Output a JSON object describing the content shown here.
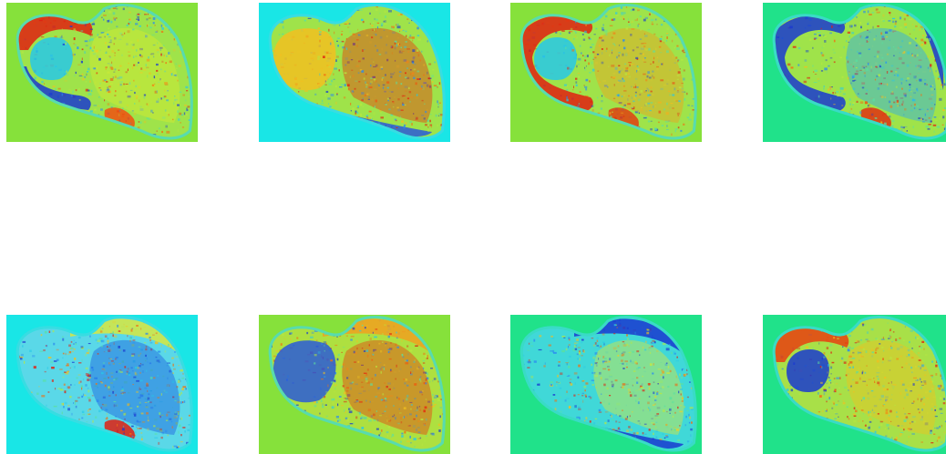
{
  "panels": [
    {
      "id": "p1",
      "background": "#86e13b",
      "body_base": "#9fe34a",
      "colormap": "jet",
      "blobs": [
        {
          "c": "#e02010",
          "shape": "arc-left-top"
        },
        {
          "c": "#1a3ad0",
          "shape": "arc-left-bottom"
        },
        {
          "c": "#27c8e8",
          "shape": "ring-head"
        },
        {
          "c": "#d6e830",
          "shape": "shaft-texture"
        },
        {
          "c": "#f05010",
          "shape": "bottom-hotspot"
        }
      ]
    },
    {
      "id": "p2",
      "background": "#19e6e6",
      "body_base": "#9fe34a",
      "colormap": "jet",
      "blobs": [
        {
          "c": "#f2c020",
          "shape": "head-fill"
        },
        {
          "c": "#e83a10",
          "shape": "shaft-texture"
        },
        {
          "c": "#2a5ad8",
          "shape": "bottom-edge"
        }
      ]
    },
    {
      "id": "p3",
      "background": "#86e13b",
      "body_base": "#9fe34a",
      "colormap": "jet",
      "blobs": [
        {
          "c": "#e02010",
          "shape": "arc-left-full"
        },
        {
          "c": "#27c8e8",
          "shape": "ring-head"
        },
        {
          "c": "#f0a020",
          "shape": "shaft-texture"
        },
        {
          "c": "#e04010",
          "shape": "bottom-hotspot"
        }
      ]
    },
    {
      "id": "p4",
      "background": "#20e28a",
      "body_base": "#9fe34a",
      "colormap": "jet",
      "blobs": [
        {
          "c": "#1a3ad0",
          "shape": "arc-left-full"
        },
        {
          "c": "#2da8f0",
          "shape": "shaft-texture"
        },
        {
          "c": "#e03010",
          "shape": "bottom-hotspot"
        },
        {
          "c": "#1a3ad0",
          "shape": "right-edge"
        }
      ]
    },
    {
      "id": "p5",
      "background": "#19e6e6",
      "body_base": "#5ad8e8",
      "colormap": "jet",
      "blobs": [
        {
          "c": "#2060e0",
          "shape": "shaft-texture"
        },
        {
          "c": "#d8e840",
          "shape": "top-edge"
        },
        {
          "c": "#e02010",
          "shape": "bottom-hotspot"
        }
      ]
    },
    {
      "id": "p6",
      "background": "#86e13b",
      "body_base": "#aee040",
      "colormap": "jet",
      "blobs": [
        {
          "c": "#e84010",
          "shape": "shaft-texture"
        },
        {
          "c": "#2a5ad8",
          "shape": "head-fill"
        },
        {
          "c": "#f0a020",
          "shape": "top-edge"
        }
      ]
    },
    {
      "id": "p7",
      "background": "#20e28a",
      "body_base": "#40d8d8",
      "colormap": "jet",
      "blobs": [
        {
          "c": "#1a3ad0",
          "shape": "top-edge"
        },
        {
          "c": "#d8e840",
          "shape": "shaft-texture"
        },
        {
          "c": "#1a3ad0",
          "shape": "bottom-edge"
        }
      ]
    },
    {
      "id": "p8",
      "background": "#20e28a",
      "body_base": "#a8e048",
      "colormap": "jet",
      "blobs": [
        {
          "c": "#e84010",
          "shape": "arc-left-top"
        },
        {
          "c": "#f0c020",
          "shape": "shaft-texture"
        },
        {
          "c": "#1a3ad0",
          "shape": "ring-head"
        }
      ]
    }
  ]
}
